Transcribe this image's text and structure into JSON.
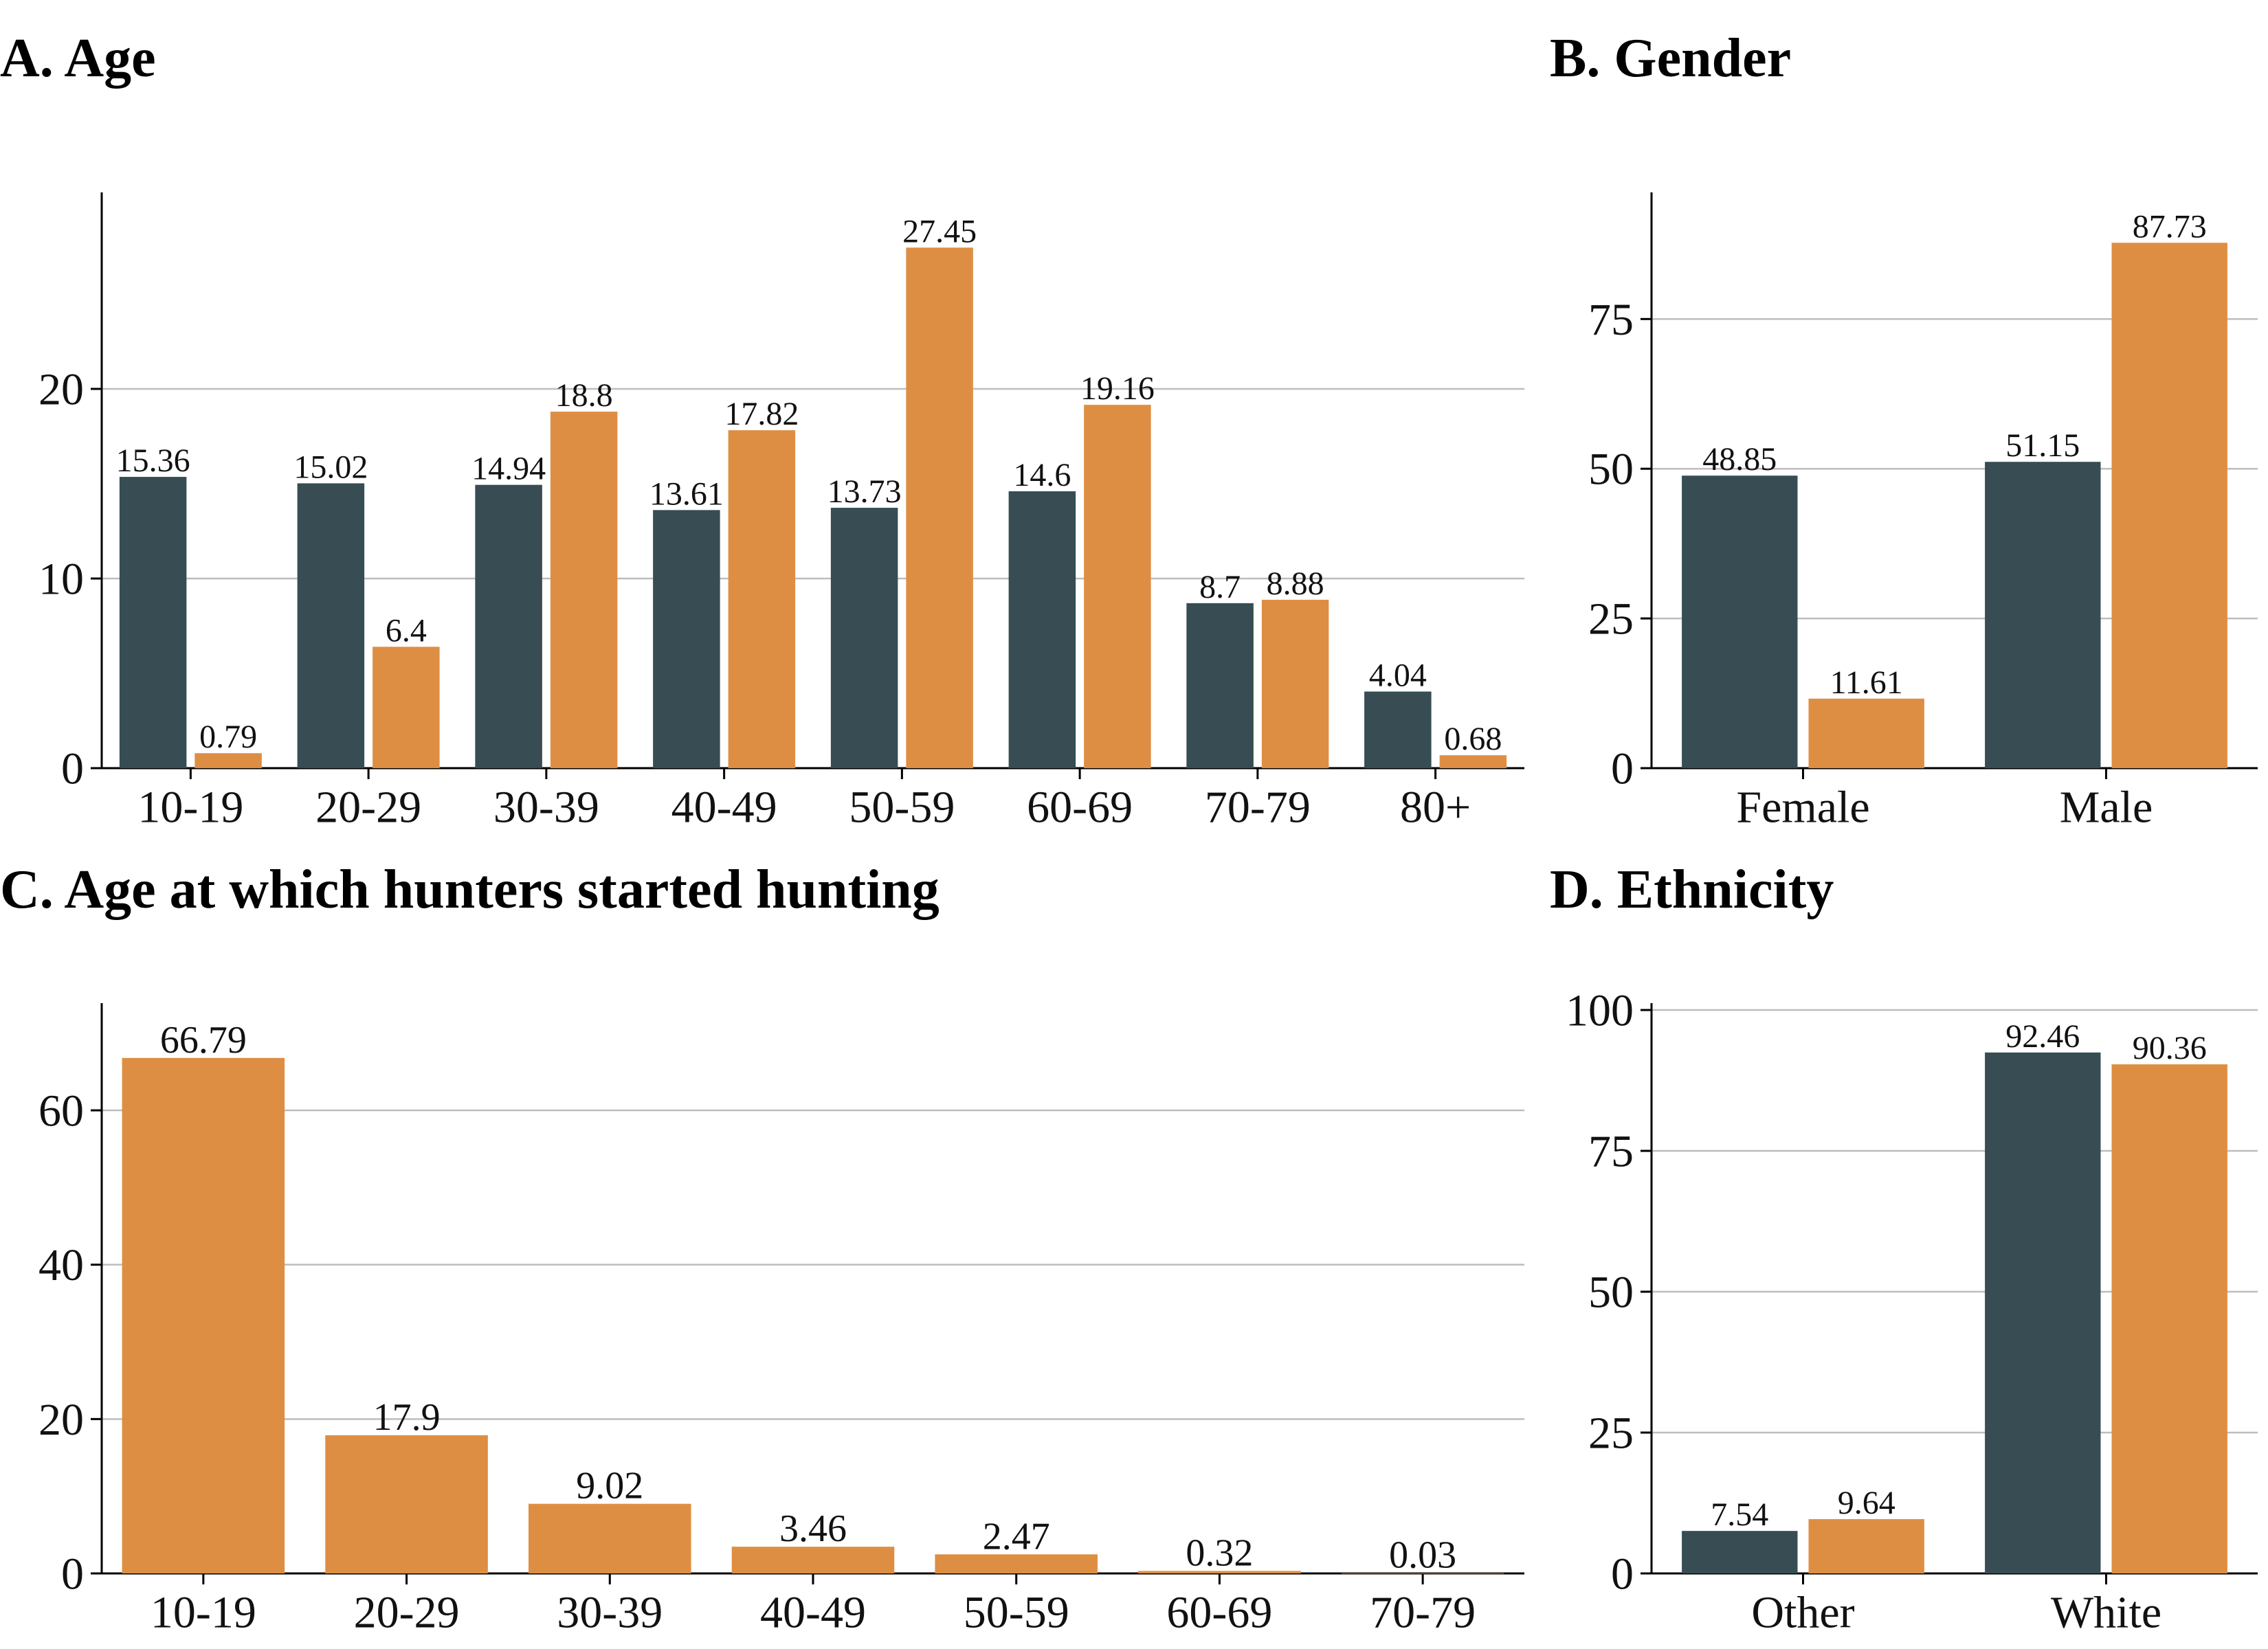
{
  "colors": {
    "general": "#374c53",
    "hunters": "#de8e43",
    "grid": "#bdbdbd",
    "axis": "#000000"
  },
  "chart_data": [
    {
      "id": "age",
      "type": "bar",
      "title": "A. Age",
      "categories": [
        "10-19",
        "20-29",
        "30-39",
        "40-49",
        "50-59",
        "60-69",
        "70-79",
        "80+"
      ],
      "series": [
        {
          "color": "#374c53",
          "values": [
            15.36,
            15.02,
            14.94,
            13.61,
            13.73,
            14.6,
            8.7,
            4.04
          ]
        },
        {
          "color": "#de8e43",
          "values": [
            0.79,
            6.4,
            18.8,
            17.82,
            27.45,
            19.16,
            8.88,
            0.68
          ]
        }
      ],
      "ylim": [
        0,
        30
      ],
      "yticks": [
        0,
        10,
        20
      ],
      "grid": true,
      "legend": "none"
    },
    {
      "id": "gender",
      "type": "bar",
      "title": "B. Gender",
      "categories": [
        "Female",
        "Male"
      ],
      "series": [
        {
          "color": "#374c53",
          "values": [
            48.85,
            51.15
          ]
        },
        {
          "color": "#de8e43",
          "values": [
            11.61,
            87.73
          ]
        }
      ],
      "ylim": [
        0,
        95
      ],
      "yticks": [
        0,
        25,
        50,
        75
      ],
      "grid": true,
      "legend": "none"
    },
    {
      "id": "started",
      "type": "bar",
      "title": "C. Age at which hunters started hunting",
      "categories": [
        "10-19",
        "20-29",
        "30-39",
        "40-49",
        "50-59",
        "60-69",
        "70-79"
      ],
      "series": [
        {
          "color": "#de8e43",
          "values": [
            66.79,
            17.9,
            9.02,
            3.46,
            2.47,
            0.32,
            0.03
          ]
        }
      ],
      "ylim": [
        0,
        73
      ],
      "yticks": [
        0,
        20,
        40,
        60
      ],
      "grid": true,
      "legend": "none"
    },
    {
      "id": "ethnicity",
      "type": "bar",
      "title": "D. Ethnicity",
      "categories": [
        "Other",
        "White"
      ],
      "series": [
        {
          "color": "#374c53",
          "values": [
            7.54,
            92.46
          ]
        },
        {
          "color": "#de8e43",
          "values": [
            9.64,
            90.36
          ]
        }
      ],
      "ylim": [
        0,
        100
      ],
      "yticks": [
        0,
        25,
        50,
        75,
        100
      ],
      "grid": true,
      "legend": "none"
    }
  ]
}
